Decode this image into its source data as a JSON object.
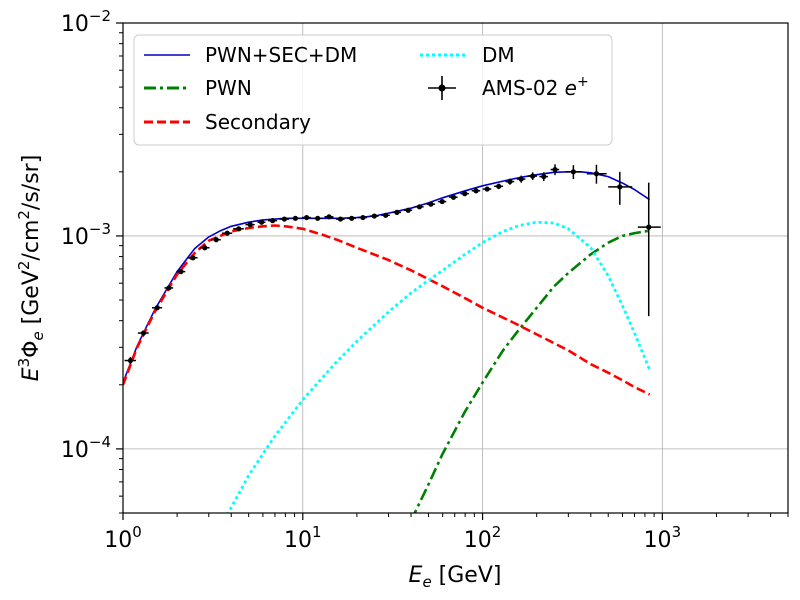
{
  "chart_data": {
    "type": "line",
    "xlabel_main": "E",
    "xlabel_sub": "e",
    "xlabel_unit": " [GeV]",
    "ylabel_parts": [
      "E",
      "3",
      "Φ",
      "e",
      " [GeV",
      "2",
      "/cm",
      "2",
      "/s/sr]"
    ],
    "xscale": "log",
    "yscale": "log",
    "xlim": [
      1,
      5000
    ],
    "ylim": [
      5e-05,
      0.01
    ],
    "x_ticks": [
      {
        "value": 1,
        "base": "10",
        "exp": "0"
      },
      {
        "value": 10,
        "base": "10",
        "exp": "1"
      },
      {
        "value": 100,
        "base": "10",
        "exp": "2"
      },
      {
        "value": 1000,
        "base": "10",
        "exp": "3"
      }
    ],
    "y_ticks": [
      {
        "value": 0.0001,
        "base": "10",
        "exp": "−4"
      },
      {
        "value": 0.001,
        "base": "10",
        "exp": "−3"
      },
      {
        "value": 0.01,
        "base": "10",
        "exp": "−2"
      }
    ],
    "grid": true,
    "legend_position": "top-left",
    "series": [
      {
        "name": "PWN+SEC+DM",
        "color": "#0000cc",
        "style": "solid",
        "x": [
          1.0,
          1.2,
          1.5,
          2.0,
          2.5,
          3.0,
          3.5,
          4.0,
          5.0,
          6.0,
          7.0,
          8.0,
          10,
          13,
          16,
          20,
          25,
          30,
          40,
          50,
          60,
          80,
          100,
          130,
          160,
          200,
          250,
          300,
          350,
          400,
          500,
          600,
          700,
          850
        ],
        "y": [
          0.000205,
          0.000305,
          0.00045,
          0.00068,
          0.00087,
          0.00099,
          0.00106,
          0.00111,
          0.00116,
          0.00119,
          0.0012,
          0.00121,
          0.00121,
          0.00121,
          0.00121,
          0.00122,
          0.00124,
          0.00128,
          0.00135,
          0.00143,
          0.00151,
          0.00163,
          0.00172,
          0.00181,
          0.00188,
          0.00194,
          0.00199,
          0.002,
          0.002,
          0.00198,
          0.0019,
          0.00177,
          0.00165,
          0.00148
        ]
      },
      {
        "name": "PWN",
        "color": "#008000",
        "style": "dashdot",
        "x": [
          40,
          50,
          60,
          80,
          100,
          130,
          160,
          200,
          250,
          300,
          400,
          500,
          600,
          700,
          850
        ],
        "y": [
          4.6e-05,
          6.8e-05,
          9.5e-05,
          0.00015,
          0.000205,
          0.00029,
          0.000365,
          0.00046,
          0.00058,
          0.00067,
          0.00082,
          0.00093,
          0.001,
          0.00103,
          0.00106
        ]
      },
      {
        "name": "Secondary",
        "color": "#ff0000",
        "style": "dashed",
        "x": [
          1.0,
          1.2,
          1.5,
          2.0,
          2.5,
          3.0,
          4.0,
          5.0,
          6.0,
          7.0,
          8.0,
          10,
          13,
          16,
          20,
          30,
          40,
          60,
          80,
          100,
          150,
          200,
          300,
          400,
          500,
          600,
          700,
          850
        ],
        "y": [
          0.0002,
          0.0003,
          0.00044,
          0.00066,
          0.00083,
          0.00095,
          0.00105,
          0.00109,
          0.00111,
          0.00112,
          0.00111,
          0.00108,
          0.00101,
          0.00095,
          0.00088,
          0.00077,
          0.00069,
          0.00058,
          0.00051,
          0.00046,
          0.00039,
          0.000345,
          0.00029,
          0.00025,
          0.000228,
          0.00021,
          0.000195,
          0.00018
        ]
      },
      {
        "name": "DM",
        "color": "#00ffff",
        "style": "dotted",
        "x": [
          3.8,
          5,
          7,
          10,
          15,
          20,
          30,
          40,
          60,
          80,
          100,
          130,
          160,
          200,
          250,
          300,
          400,
          500,
          600,
          700,
          850
        ],
        "y": [
          4.9e-05,
          7.5e-05,
          0.000115,
          0.00017,
          0.00025,
          0.00032,
          0.00044,
          0.00054,
          0.00069,
          0.00082,
          0.00093,
          0.00105,
          0.00112,
          0.00116,
          0.00115,
          0.00108,
          0.00088,
          0.00065,
          0.00047,
          0.00035,
          0.000235
        ]
      }
    ],
    "data_points": {
      "name": "AMS-02",
      "name_symbol": "e",
      "name_charge": "+",
      "color": "#000000",
      "x": [
        1.1,
        1.3,
        1.55,
        1.8,
        2.1,
        2.45,
        2.85,
        3.3,
        3.8,
        4.4,
        5.1,
        5.9,
        6.8,
        7.9,
        9.1,
        10.5,
        12.1,
        14.0,
        16.2,
        18.7,
        21.6,
        25.0,
        28.9,
        33.4,
        38.6,
        44.6,
        51.6,
        59.6,
        68.9,
        79.6,
        92.0,
        106,
        123,
        142,
        164,
        190,
        219,
        253,
        320,
        430,
        580,
        840
      ],
      "y": [
        0.00026,
        0.00035,
        0.00046,
        0.00057,
        0.00068,
        0.00079,
        0.00088,
        0.00096,
        0.00103,
        0.00108,
        0.00113,
        0.00116,
        0.00118,
        0.0012,
        0.00121,
        0.00122,
        0.00121,
        0.00123,
        0.0012,
        0.00121,
        0.00122,
        0.00124,
        0.00125,
        0.00129,
        0.00132,
        0.00137,
        0.00141,
        0.00145,
        0.00152,
        0.00158,
        0.00163,
        0.00166,
        0.00171,
        0.0018,
        0.00185,
        0.00191,
        0.0019,
        0.00205,
        0.002,
        0.00196,
        0.0017,
        0.0011
      ],
      "y_err": [
        1e-05,
        1e-05,
        1e-05,
        1e-05,
        1e-05,
        1e-05,
        1e-05,
        1e-05,
        1e-05,
        1e-05,
        1e-05,
        1e-05,
        1e-05,
        1e-05,
        1e-05,
        1e-05,
        1e-05,
        1e-05,
        1e-05,
        1e-05,
        1e-05,
        1e-05,
        2e-05,
        2e-05,
        2e-05,
        3e-05,
        3e-05,
        3e-05,
        3e-05,
        4e-05,
        4e-05,
        4e-05,
        5e-05,
        6e-05,
        7e-05,
        8e-05,
        9e-05,
        0.00012,
        0.00015,
        0.0002,
        0.0003,
        0.00068
      ],
      "x_err_lo": [
        0.08,
        0.09,
        0.1,
        0.1,
        0.12,
        0.15,
        0.18,
        0.2,
        0.25,
        0.3,
        0.3,
        0.3,
        0.4,
        0.5,
        0.5,
        0.6,
        0.7,
        0.8,
        0.9,
        1.0,
        1.2,
        1.4,
        1.6,
        1.8,
        2.0,
        2.4,
        2.8,
        3.2,
        3.7,
        4.3,
        5.0,
        5.8,
        7,
        8,
        9,
        11,
        12,
        14,
        30,
        50,
        80,
        110
      ],
      "x_err_hi": [
        0.08,
        0.09,
        0.1,
        0.1,
        0.12,
        0.15,
        0.18,
        0.2,
        0.25,
        0.3,
        0.3,
        0.3,
        0.4,
        0.5,
        0.5,
        0.6,
        0.7,
        0.8,
        0.9,
        1.0,
        1.2,
        1.4,
        1.6,
        1.8,
        2.0,
        2.4,
        2.8,
        3.2,
        3.7,
        4.3,
        5.0,
        5.8,
        7,
        8,
        9,
        11,
        12,
        14,
        35,
        60,
        100,
        140
      ]
    }
  }
}
